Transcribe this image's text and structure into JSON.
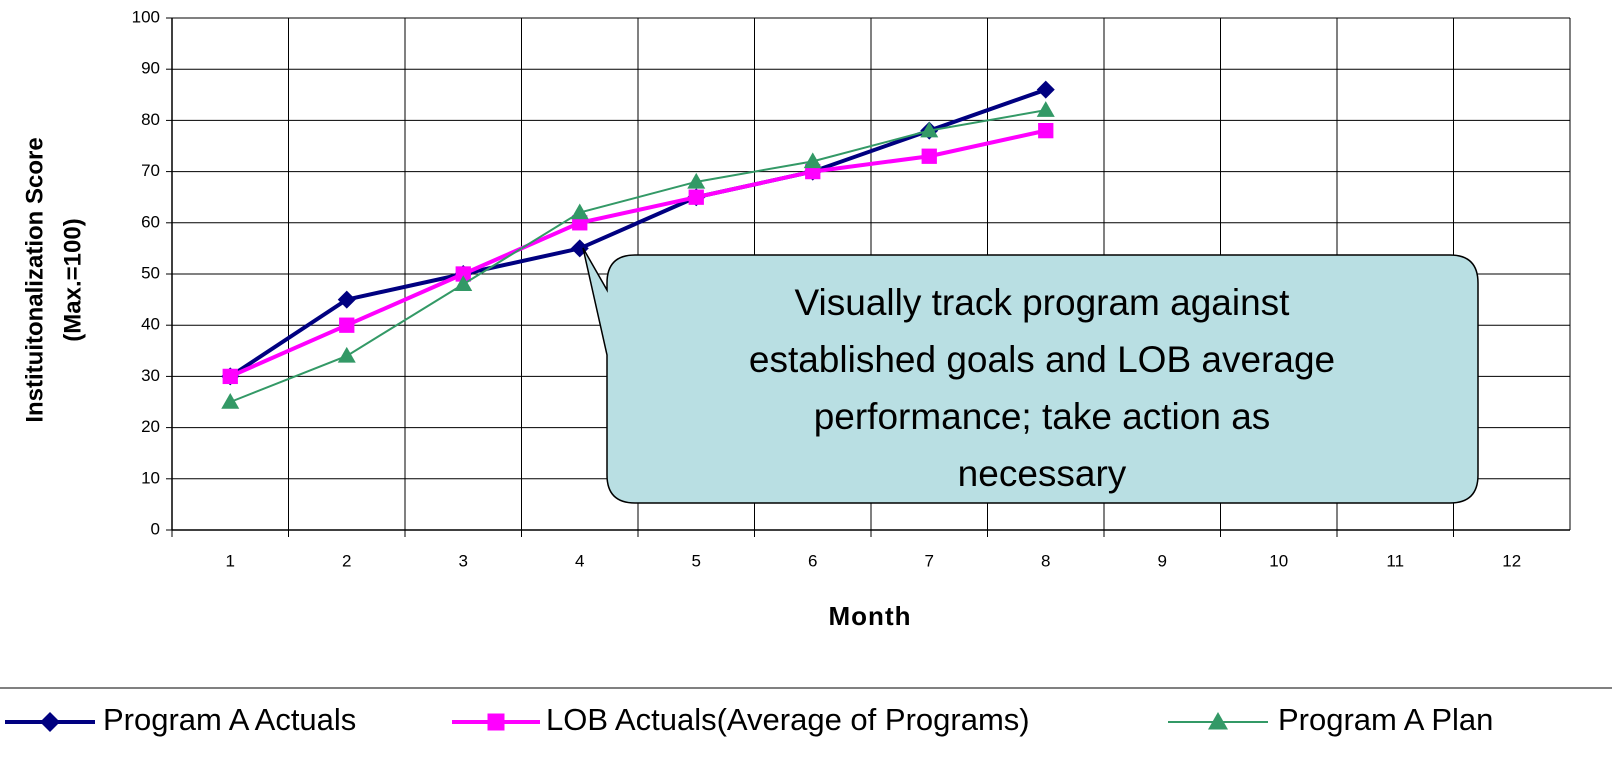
{
  "chart_data": {
    "type": "line",
    "categories": [
      "1",
      "2",
      "3",
      "4",
      "5",
      "6",
      "7",
      "8",
      "9",
      "10",
      "11",
      "12"
    ],
    "series": [
      {
        "name": "Program A Actuals",
        "color": "#000080",
        "marker": "diamond",
        "values": [
          30,
          45,
          50,
          55,
          65,
          70,
          78,
          86,
          null,
          null,
          null,
          null
        ]
      },
      {
        "name": "LOB Actuals(Average of Programs)",
        "color": "#ff00ff",
        "marker": "square",
        "values": [
          30,
          40,
          50,
          60,
          65,
          70,
          73,
          78,
          null,
          null,
          null,
          null
        ]
      },
      {
        "name": "Program A Plan",
        "color": "#339966",
        "marker": "triangle",
        "values": [
          25,
          34,
          48,
          62,
          68,
          72,
          78,
          82,
          null,
          null,
          null,
          null
        ]
      }
    ],
    "ylim": [
      0,
      100
    ],
    "yticks": [
      0,
      10,
      20,
      30,
      40,
      50,
      60,
      70,
      80,
      90,
      100
    ],
    "grid": true,
    "xlabel": "Month",
    "ylabel": [
      "Instituitonalization Score",
      "(Max.=100)"
    ],
    "annotation": [
      "Visually track program against",
      "established goals and LOB average",
      "performance;  take action as",
      "necessary"
    ],
    "legend": "bottom"
  }
}
